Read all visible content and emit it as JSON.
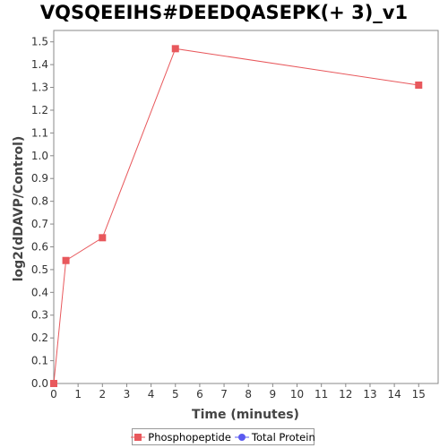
{
  "chart_data": {
    "type": "line",
    "title": "VQSQEEIHS#DEEDQASEPK(+ 3)_v1",
    "xlabel": "Time (minutes)",
    "ylabel": "log2(dDAVP/Control)",
    "xlim": [
      0,
      15.8
    ],
    "ylim": [
      0,
      1.55
    ],
    "x_ticks": [
      "0",
      "1",
      "2",
      "3",
      "4",
      "5",
      "6",
      "7",
      "8",
      "9",
      "10",
      "11",
      "12",
      "13",
      "14",
      "15"
    ],
    "y_ticks": [
      "0.0",
      "0.1",
      "0.2",
      "0.3",
      "0.4",
      "0.5",
      "0.6",
      "0.7",
      "0.8",
      "0.9",
      "1.0",
      "1.1",
      "1.2",
      "1.3",
      "1.4",
      "1.5"
    ],
    "grid": false,
    "legend_position": "bottom",
    "series": [
      {
        "name": "Phosphopeptide",
        "color": "#e8585c",
        "marker": "square",
        "x": [
          0,
          0.5,
          2,
          5,
          15
        ],
        "y": [
          0.0,
          0.54,
          0.64,
          1.47,
          1.31
        ]
      },
      {
        "name": "Total Protein",
        "color": "#5a5af0",
        "marker": "circle",
        "x": [],
        "y": []
      }
    ]
  }
}
